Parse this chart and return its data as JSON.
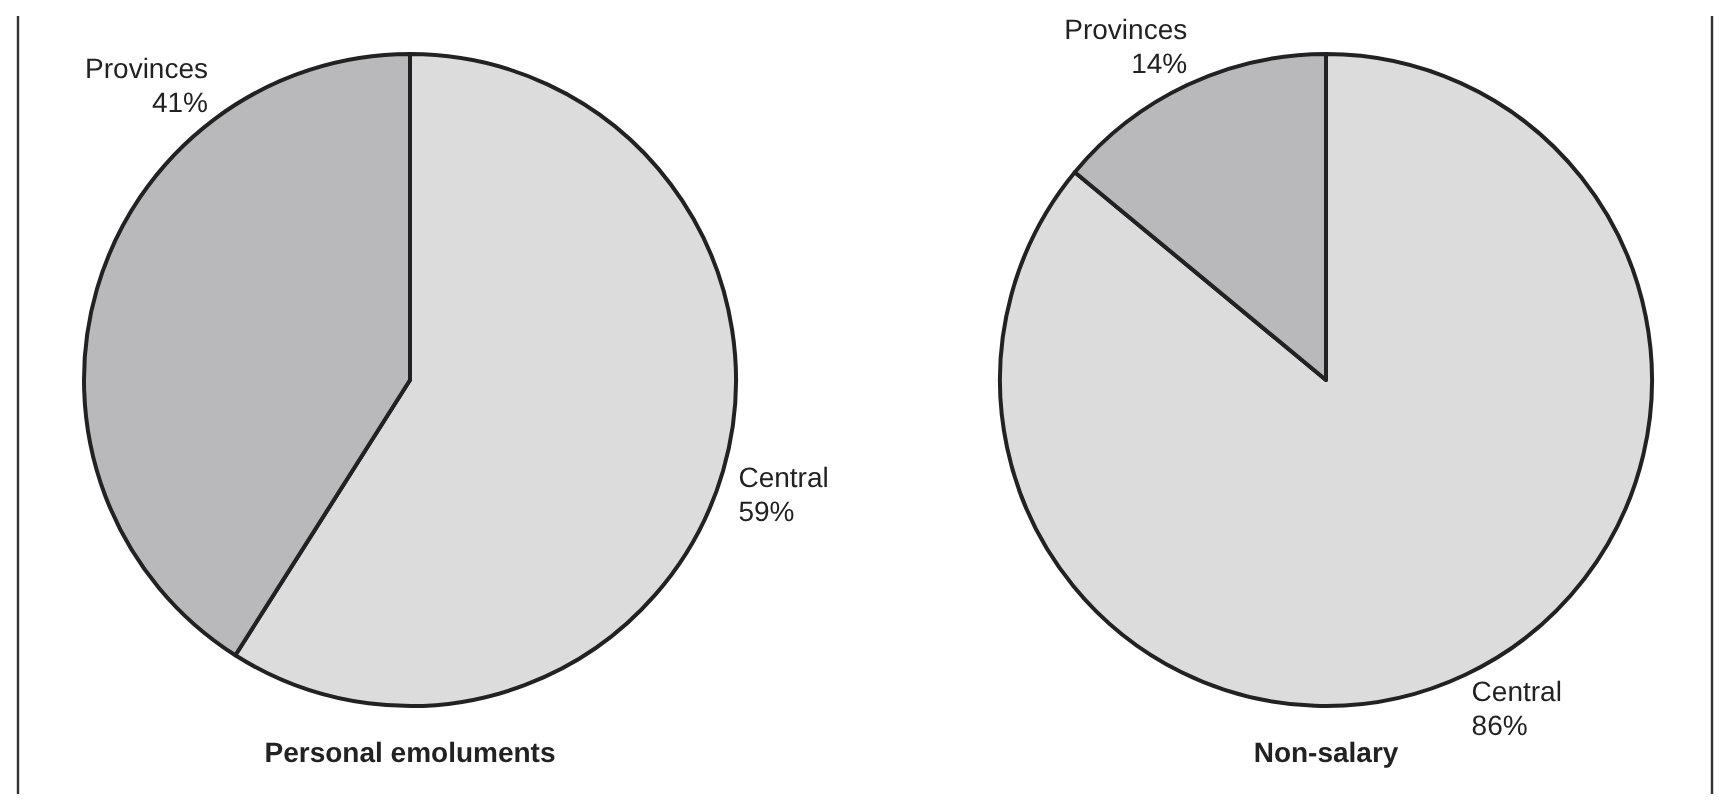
{
  "chart_data": [
    {
      "type": "pie",
      "title": "Personal emoluments",
      "categories": [
        "Central",
        "Provinces"
      ],
      "values": [
        59,
        41
      ],
      "colors": [
        "#dcdcdc",
        "#b9b9bb"
      ],
      "value_labels": [
        "59%",
        "41%"
      ]
    },
    {
      "type": "pie",
      "title": "Non-salary",
      "categories": [
        "Central",
        "Provinces"
      ],
      "values": [
        86,
        14
      ],
      "colors": [
        "#dcdcdc",
        "#b9b9bb"
      ],
      "value_labels": [
        "86%",
        "14%"
      ]
    }
  ]
}
